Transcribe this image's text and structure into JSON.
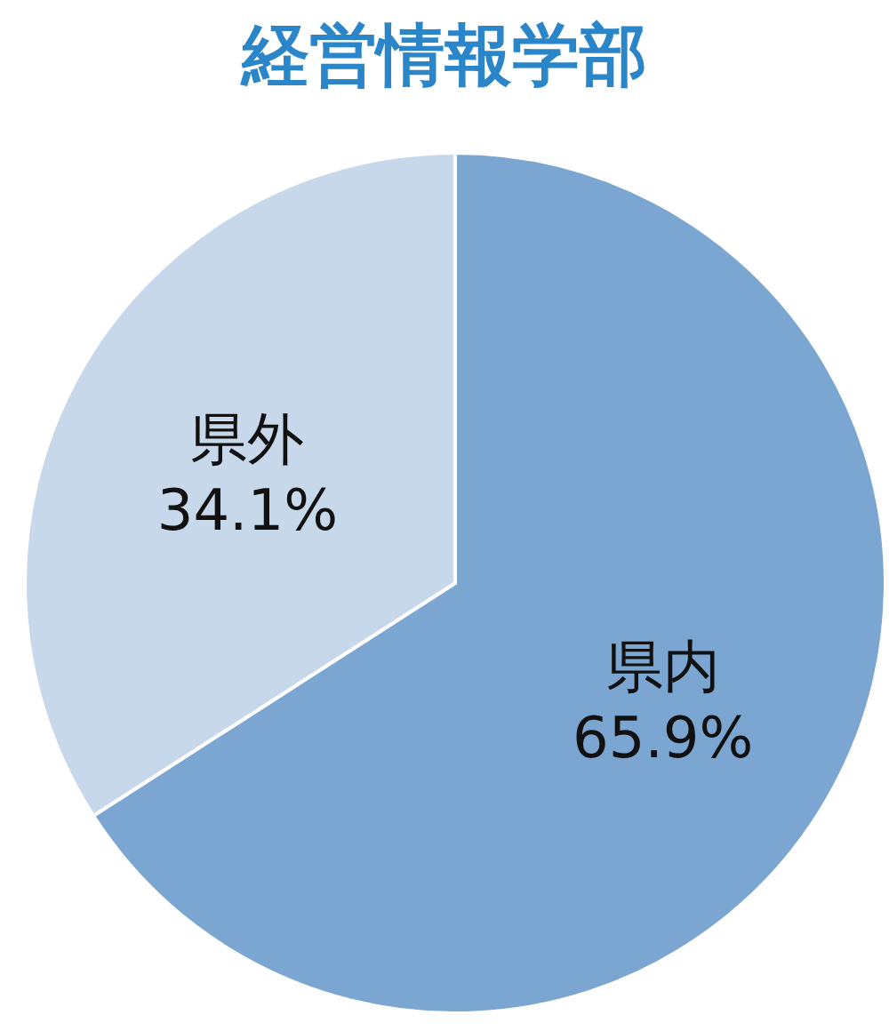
{
  "chart_data": {
    "type": "pie",
    "title": "経営情報学部",
    "categories": [
      "県内",
      "県外"
    ],
    "values": [
      65.9,
      34.1
    ],
    "value_labels": [
      "65.9%",
      "34.1%"
    ],
    "colors": [
      "#7ba6d1",
      "#c8d8eb"
    ]
  }
}
